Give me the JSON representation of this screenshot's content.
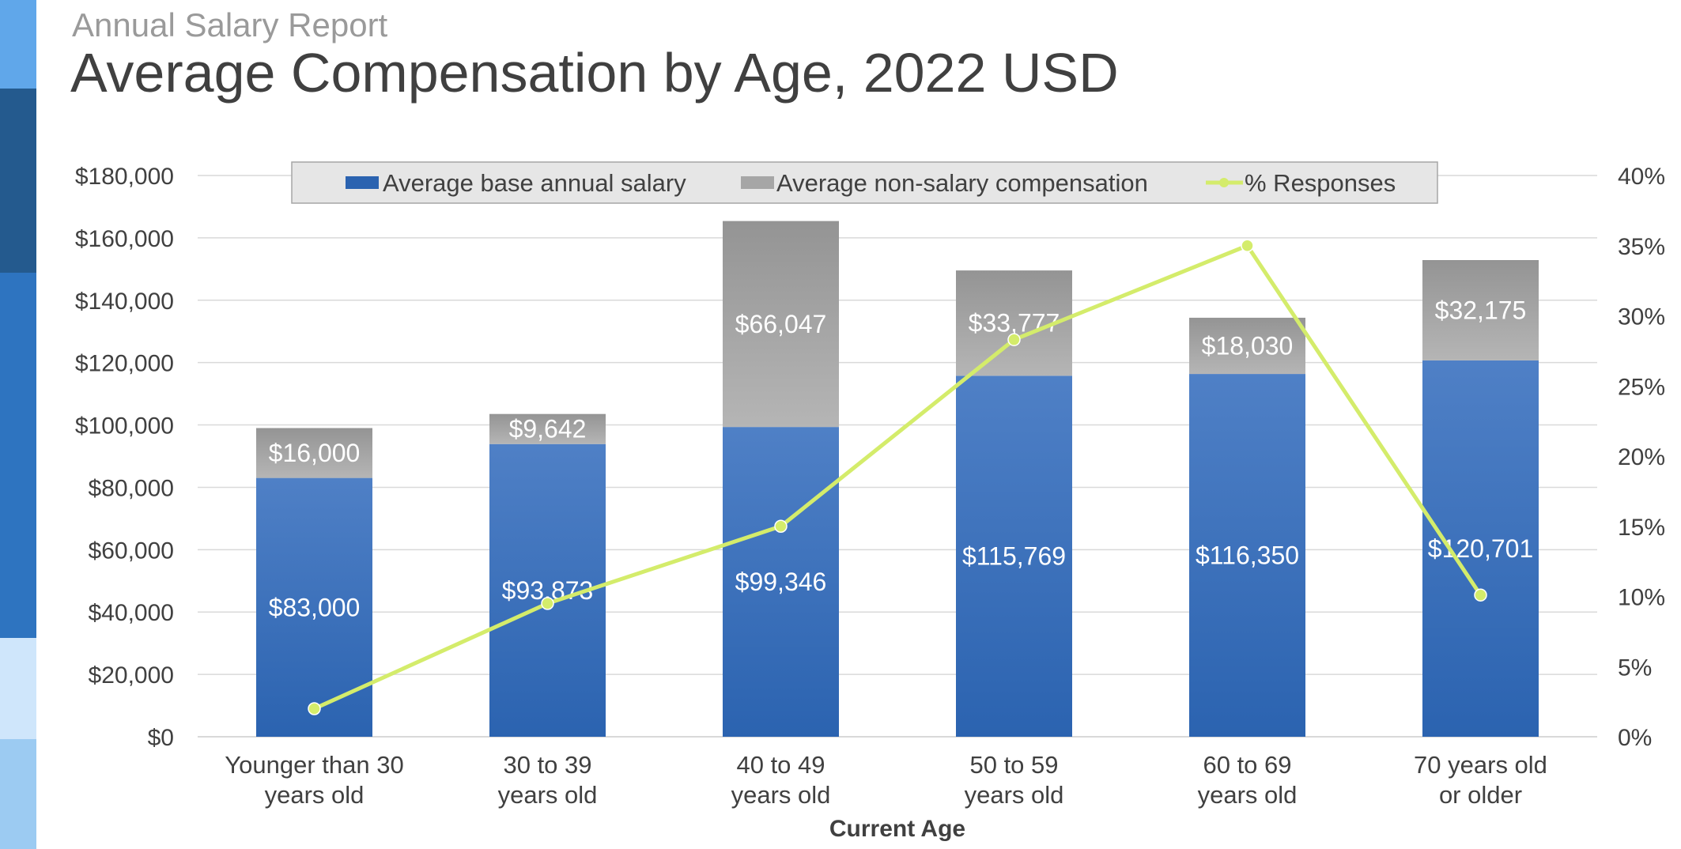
{
  "header": {
    "subtitle": "Annual Salary Report",
    "title": "Average Compensation by Age, 2022 USD"
  },
  "colors": {
    "salary_top": "#4f80c6",
    "salary_bottom": "#2b63b0",
    "nonsalary_top": "#949494",
    "nonsalary_bottom": "#b5b5b5",
    "responses_line": "#d4ec6b",
    "gridline": "#d9d9d9",
    "legend_bg": "#e6e6e6",
    "side_bar": [
      "#60a7ea",
      "#245a8e",
      "#2e74c0",
      "#cfe6fb",
      "#9ccbf2"
    ]
  },
  "chart_data": {
    "type": "bar",
    "stacked": true,
    "categories": [
      "Younger than 30 years old",
      "30 to 39 years old",
      "40 to 49 years old",
      "50 to 59 years old",
      "60 to 69 years old",
      "70 years old or older"
    ],
    "category_lines": [
      [
        "Younger than 30",
        "years old"
      ],
      [
        "30 to 39",
        "years old"
      ],
      [
        "40 to 49",
        "years old"
      ],
      [
        "50 to 59",
        "years old"
      ],
      [
        "60 to 69",
        "years old"
      ],
      [
        "70 years old",
        "or older"
      ]
    ],
    "series": [
      {
        "name": "Average base annual salary",
        "type": "bar",
        "axis": "left",
        "values": [
          83000,
          93873,
          99346,
          115769,
          116350,
          120701
        ],
        "labels": [
          "$83,000",
          "$93,873",
          "$99,346",
          "$115,769",
          "$116,350",
          "$120,701"
        ]
      },
      {
        "name": "Average non-salary compensation",
        "type": "bar",
        "axis": "left",
        "values": [
          16000,
          9642,
          66047,
          33777,
          18030,
          32175
        ],
        "labels": [
          "$16,000",
          "$9,642",
          "$66,047",
          "$33,777",
          "$18,030",
          "$32,175"
        ]
      },
      {
        "name": "% Responses",
        "type": "line",
        "axis": "right",
        "values": [
          2.0,
          9.5,
          15.0,
          28.3,
          35.0,
          10.1
        ]
      }
    ],
    "xlabel": "Current Age",
    "ylabel": "",
    "ylim": [
      0,
      180000
    ],
    "y_ticks": [
      0,
      20000,
      40000,
      60000,
      80000,
      100000,
      120000,
      140000,
      160000,
      180000
    ],
    "y_tick_labels": [
      "$0",
      "$20,000",
      "$40,000",
      "$60,000",
      "$80,000",
      "$100,000",
      "$120,000",
      "$140,000",
      "$160,000",
      "$180,000"
    ],
    "y2lim": [
      0,
      40
    ],
    "y2_ticks": [
      0,
      5,
      10,
      15,
      20,
      25,
      30,
      35,
      40
    ],
    "y2_tick_labels": [
      "0%",
      "5%",
      "10%",
      "15%",
      "20%",
      "25%",
      "30%",
      "35%",
      "40%"
    ],
    "grid": true,
    "legend_position": "top"
  }
}
